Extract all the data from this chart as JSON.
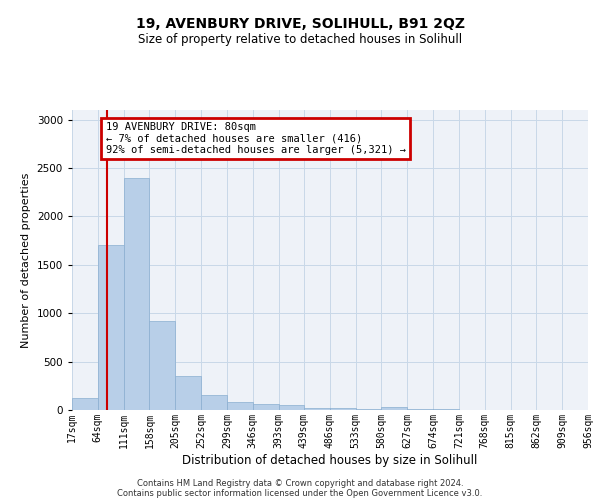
{
  "title": "19, AVENBURY DRIVE, SOLIHULL, B91 2QZ",
  "subtitle": "Size of property relative to detached houses in Solihull",
  "xlabel": "Distribution of detached houses by size in Solihull",
  "ylabel": "Number of detached properties",
  "footer_line1": "Contains HM Land Registry data © Crown copyright and database right 2024.",
  "footer_line2": "Contains public sector information licensed under the Open Government Licence v3.0.",
  "bar_color": "#b8cfe8",
  "bar_edge_color": "#8aaed0",
  "grid_color": "#c8d8e8",
  "annotation_box_color": "#cc0000",
  "annotation_line1": "19 AVENBURY DRIVE: 80sqm",
  "annotation_line2": "← 7% of detached houses are smaller (416)",
  "annotation_line3": "92% of semi-detached houses are larger (5,321) →",
  "red_line_x": 80,
  "bin_edges": [
    17,
    64,
    111,
    158,
    205,
    252,
    299,
    346,
    393,
    439,
    486,
    533,
    580,
    627,
    674,
    721,
    768,
    815,
    862,
    909,
    956
  ],
  "bar_heights": [
    120,
    1700,
    2400,
    920,
    350,
    155,
    80,
    65,
    50,
    20,
    20,
    15,
    30,
    15,
    10,
    5,
    5,
    3,
    2,
    1
  ],
  "ylim": [
    0,
    3100
  ],
  "yticks": [
    0,
    500,
    1000,
    1500,
    2000,
    2500,
    3000
  ],
  "background_color": "#eef2f8",
  "title_fontsize": 10,
  "subtitle_fontsize": 8.5,
  "ylabel_fontsize": 8,
  "xlabel_fontsize": 8.5,
  "tick_fontsize": 7,
  "annotation_fontsize": 7.5,
  "footer_fontsize": 6
}
